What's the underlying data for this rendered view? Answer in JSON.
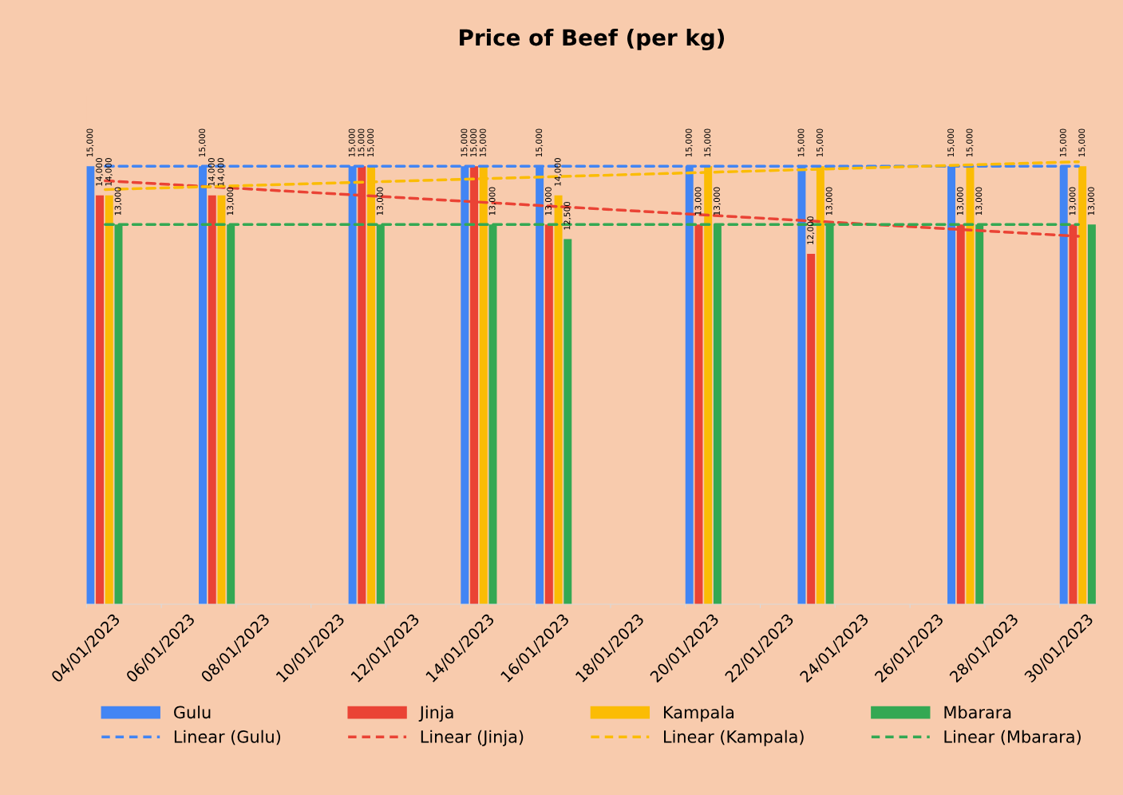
{
  "chart_data": {
    "type": "bar",
    "title": "Price of Beef (per kg)",
    "x": [
      "2023-01-04",
      "2023-01-07",
      "2023-01-11",
      "2023-01-14",
      "2023-01-16",
      "2023-01-20",
      "2023-01-23",
      "2023-01-27",
      "2023-01-30"
    ],
    "series": [
      {
        "name": "Gulu",
        "color": "#4285f4",
        "values": [
          15000,
          15000,
          15000,
          15000,
          15000,
          15000,
          15000,
          15000,
          15000
        ],
        "value_labels": [
          "15,000",
          "15,000",
          "15,000",
          "15,000",
          "15,000",
          "15,000",
          "15,000",
          "15,000",
          "15,000"
        ]
      },
      {
        "name": "Jinja",
        "color": "#ea4335",
        "values": [
          14000,
          14000,
          15000,
          15000,
          13000,
          13000,
          12000,
          13000,
          13000
        ],
        "value_labels": [
          "14,000",
          "14,000",
          "15,000",
          "15,000",
          "13,000",
          "13,000",
          "12,000",
          "13,000",
          "13,000"
        ]
      },
      {
        "name": "Kampala",
        "color": "#fbbc04",
        "values": [
          14000,
          14000,
          15000,
          15000,
          14000,
          15000,
          15000,
          15000,
          15000
        ],
        "value_labels": [
          "14,000",
          "14,000",
          "15,000",
          "15,000",
          "14,000",
          "15,000",
          "15,000",
          "15,000",
          "15,000"
        ]
      },
      {
        "name": "Mbarara",
        "color": "#34a853",
        "values": [
          13000,
          13000,
          13000,
          13000,
          12500,
          13000,
          13000,
          13000,
          13000
        ],
        "value_labels": [
          "13,000",
          "13,000",
          "13,000",
          "13,000",
          "12,500",
          "13,000",
          "13,000",
          "13,000",
          "13,000"
        ]
      },
      {
        "name": "Linear (Gulu)",
        "type": "line",
        "line_style": "dashed",
        "color": "#4285f4",
        "x": [
          "2023-01-04T12:00",
          "2023-01-30T12:00"
        ],
        "values": [
          15000,
          15000
        ]
      },
      {
        "name": "Linear (Jinja)",
        "type": "line",
        "line_style": "dashed",
        "color": "#ea4335",
        "x": [
          "2023-01-04T12:00",
          "2023-01-30T12:00"
        ],
        "values": [
          14500,
          12600
        ]
      },
      {
        "name": "Linear (Kampala)",
        "type": "line",
        "line_style": "dashed",
        "color": "#fbbc04",
        "x": [
          "2023-01-04T12:00",
          "2023-01-30T12:00"
        ],
        "values": [
          14200,
          15150
        ]
      },
      {
        "name": "Linear (Mbarara)",
        "type": "line",
        "line_style": "dashed",
        "color": "#34a853",
        "x": [
          "2023-01-04T12:00",
          "2023-01-30T12:00"
        ],
        "values": [
          13000,
          13000
        ]
      }
    ],
    "xlim": [
      "2023-01-04",
      "2023-01-31"
    ],
    "xticks": [
      {
        "value": "2023-01-04",
        "label": "04/01/2023"
      },
      {
        "value": "2023-01-06",
        "label": "06/01/2023"
      },
      {
        "value": "2023-01-08",
        "label": "08/01/2023"
      },
      {
        "value": "2023-01-10",
        "label": "10/01/2023"
      },
      {
        "value": "2023-01-12",
        "label": "12/01/2023"
      },
      {
        "value": "2023-01-14",
        "label": "14/01/2023"
      },
      {
        "value": "2023-01-16",
        "label": "16/01/2023"
      },
      {
        "value": "2023-01-18",
        "label": "18/01/2023"
      },
      {
        "value": "2023-01-20",
        "label": "20/01/2023"
      },
      {
        "value": "2023-01-22",
        "label": "22/01/2023"
      },
      {
        "value": "2023-01-24",
        "label": "24/01/2023"
      },
      {
        "value": "2023-01-26",
        "label": "26/01/2023"
      },
      {
        "value": "2023-01-28",
        "label": "28/01/2023"
      },
      {
        "value": "2023-01-30",
        "label": "30/01/2023"
      }
    ],
    "grid": false,
    "legend": "bottom",
    "tick_labels": "x",
    "marker": "none"
  }
}
